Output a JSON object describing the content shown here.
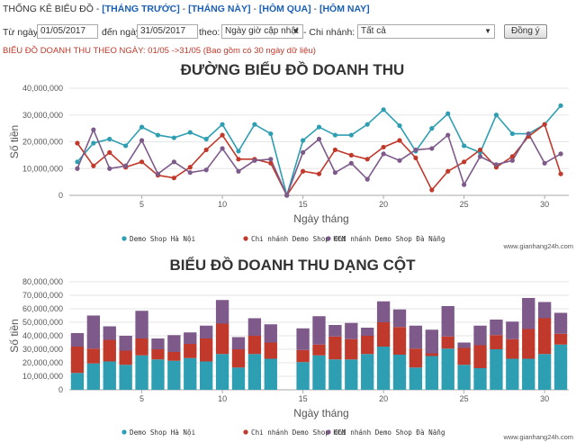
{
  "nav": {
    "heading": "THỐNG KÊ BIỂU ĐỒ - ",
    "links": [
      "[THÁNG TRƯỚC]",
      "[THÁNG NÀY]",
      "[HÔM QUA]",
      "[HÔM NAY]"
    ],
    "sep": " - "
  },
  "filters": {
    "from_label": "Từ ngày",
    "from_value": "01/05/2017",
    "to_label": "đến ngày",
    "to_value": "31/05/2017",
    "by_label": "theo:",
    "by_value": "Ngày giờ cập nhật",
    "branch_label": "- Chi nhánh:",
    "branch_value": "Tất cả",
    "submit_label": "Đồng ý"
  },
  "summary": "BIỂU ĐỒ DOANH THU THEO NGÀY: 01/05 ->31/05 (Bao gồm có 30 ngày dữ liệu)",
  "colors": {
    "s1": "#2e9eb3",
    "s2": "#c0392b",
    "s3": "#7d5a8a"
  },
  "chart_data": [
    {
      "type": "line",
      "title": "ĐƯỜNG BIỂU ĐỒ DOANH THU",
      "xlabel": "Ngày tháng",
      "ylabel": "Số tiền",
      "ylim": [
        0,
        40000000
      ],
      "yticks": [
        "0",
        "10,000,000",
        "20,000,000",
        "30,000,000",
        "40,000,000"
      ],
      "xticks": [
        "5",
        "10",
        "15",
        "20",
        "25",
        "30"
      ],
      "watermark": "www.gianhang24h.com",
      "x": [
        1,
        2,
        3,
        4,
        5,
        6,
        7,
        8,
        9,
        10,
        11,
        12,
        13,
        14,
        15,
        16,
        17,
        18,
        19,
        20,
        21,
        22,
        23,
        24,
        25,
        26,
        27,
        28,
        29,
        30,
        31
      ],
      "series": [
        {
          "name": "Demo Shop Hà Nội",
          "values": [
            12500000,
            19500000,
            21000000,
            18500000,
            25500000,
            22500000,
            21500000,
            23500000,
            21000000,
            26500000,
            16500000,
            26500000,
            23000000,
            0,
            20500000,
            25500000,
            22500000,
            22500000,
            26500000,
            32000000,
            26000000,
            16500000,
            25000000,
            30500000,
            18500000,
            16000000,
            30000000,
            23000000,
            23000000,
            26500000,
            33500000
          ]
        },
        {
          "name": "Chi nhánh Demo Shop HCM",
          "values": [
            19500000,
            11000000,
            16000000,
            10500000,
            12500000,
            7500000,
            6500000,
            10500000,
            17000000,
            22500000,
            13500000,
            13500000,
            12000000,
            0,
            9000000,
            8000000,
            17000000,
            15000000,
            13500000,
            18000000,
            20500000,
            14000000,
            2000000,
            9000000,
            12500000,
            17000000,
            10500000,
            14500000,
            22000000,
            26500000,
            8000000
          ]
        },
        {
          "name": "Chi nhánh Demo Shop Đà Nẵng",
          "values": [
            10000000,
            24500000,
            10000000,
            11000000,
            20500000,
            8000000,
            12500000,
            8500000,
            9500000,
            17500000,
            9000000,
            13000000,
            13500000,
            0,
            16000000,
            21000000,
            8500000,
            12000000,
            6000000,
            15500000,
            13000000,
            17000000,
            17500000,
            22500000,
            4000000,
            14500000,
            11500000,
            13000000,
            23000000,
            12000000,
            15500000
          ]
        }
      ]
    },
    {
      "type": "bar",
      "stacked": true,
      "title": "BIỂU ĐỒ DOANH THU DẠNG CỘT",
      "xlabel": "Ngày tháng",
      "ylabel": "Số tiền",
      "ylim": [
        0,
        80000000
      ],
      "yticks": [
        "0",
        "10,000,000",
        "20,000,000",
        "30,000,000",
        "40,000,000",
        "50,000,000",
        "60,000,000",
        "70,000,000",
        "80,000,000"
      ],
      "xticks": [
        "5",
        "10",
        "15",
        "20",
        "25",
        "30"
      ],
      "watermark": "www.gianhang24h.com"
    }
  ]
}
